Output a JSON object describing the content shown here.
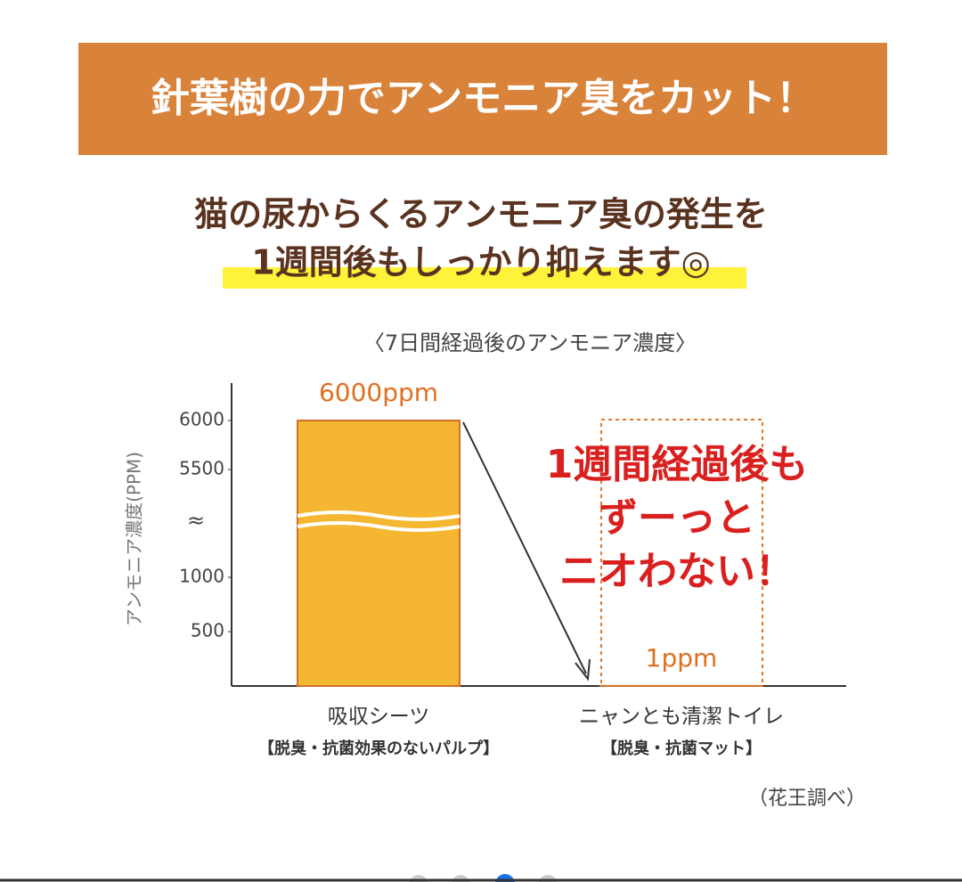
{
  "banner": {
    "title": "針葉樹の力でアンモニア臭をカット！"
  },
  "headline": {
    "lines": [
      "猫の尿からくるアンモニア臭の発生を",
      "1週間後もしっかり抑えます◎"
    ]
  },
  "chart_data": {
    "type": "bar",
    "title": "〈7日間経過後のアンモニア濃度〉",
    "y_label": "アンモニア濃度(PPM)",
    "categories": [
      "吸収シーツ",
      "ニャンとも清潔トイレ"
    ],
    "category_notes": [
      "【脱臭・抗菌効果のないパルプ】",
      "【脱臭・抗菌マット】"
    ],
    "values": [
      6000,
      1
    ],
    "value_labels": [
      "6000ppm",
      "1ppm"
    ],
    "color": "#f5b731",
    "ylim": [
      0,
      6000
    ],
    "yticks": [
      500,
      1000,
      5500,
      6000
    ],
    "y_break": {
      "from": 1000,
      "to": 5500,
      "label": "≈"
    },
    "annotation": [
      "1週間経過後も",
      "ずーっと",
      "ニオわない！"
    ]
  },
  "source": "（花王調べ）"
}
